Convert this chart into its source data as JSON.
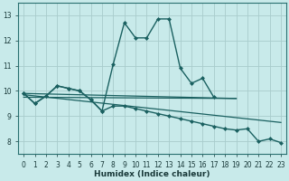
{
  "xlabel": "Humidex (Indice chaleur)",
  "xlim": [
    -0.5,
    23.5
  ],
  "ylim": [
    7.5,
    13.5
  ],
  "yticks": [
    8,
    9,
    10,
    11,
    12,
    13
  ],
  "xticks": [
    0,
    1,
    2,
    3,
    4,
    5,
    6,
    7,
    8,
    9,
    10,
    11,
    12,
    13,
    14,
    15,
    16,
    17,
    18,
    19,
    20,
    21,
    22,
    23
  ],
  "bg_color": "#c8eaea",
  "grid_color": "#a8cccc",
  "line_color": "#1a6060",
  "series1_x": [
    0,
    1,
    2,
    3,
    4,
    5,
    6,
    7,
    8,
    9,
    10,
    11,
    12,
    13,
    14,
    15,
    16,
    17
  ],
  "series1_y": [
    9.9,
    9.5,
    9.8,
    10.2,
    10.1,
    10.0,
    9.65,
    9.2,
    11.05,
    12.7,
    12.1,
    12.1,
    12.85,
    12.85,
    10.9,
    10.3,
    10.5,
    9.75
  ],
  "series2_x": [
    0,
    1,
    2,
    3,
    4,
    5,
    6,
    7,
    8,
    9,
    10,
    11,
    12,
    13,
    14,
    15,
    16,
    17,
    18,
    19,
    20,
    21,
    22,
    23
  ],
  "series2_y": [
    9.9,
    9.5,
    9.8,
    10.2,
    10.1,
    10.0,
    9.65,
    9.2,
    9.4,
    9.4,
    9.3,
    9.2,
    9.1,
    9.0,
    8.9,
    8.8,
    8.7,
    8.6,
    8.5,
    8.45,
    8.5,
    8.0,
    8.1,
    7.95
  ],
  "line3_x": [
    0,
    19
  ],
  "line3_y": [
    9.9,
    9.7
  ],
  "line4_x": [
    0,
    19
  ],
  "line4_y": [
    9.75,
    9.7
  ],
  "line5_x": [
    0,
    23
  ],
  "line5_y": [
    9.85,
    8.75
  ]
}
